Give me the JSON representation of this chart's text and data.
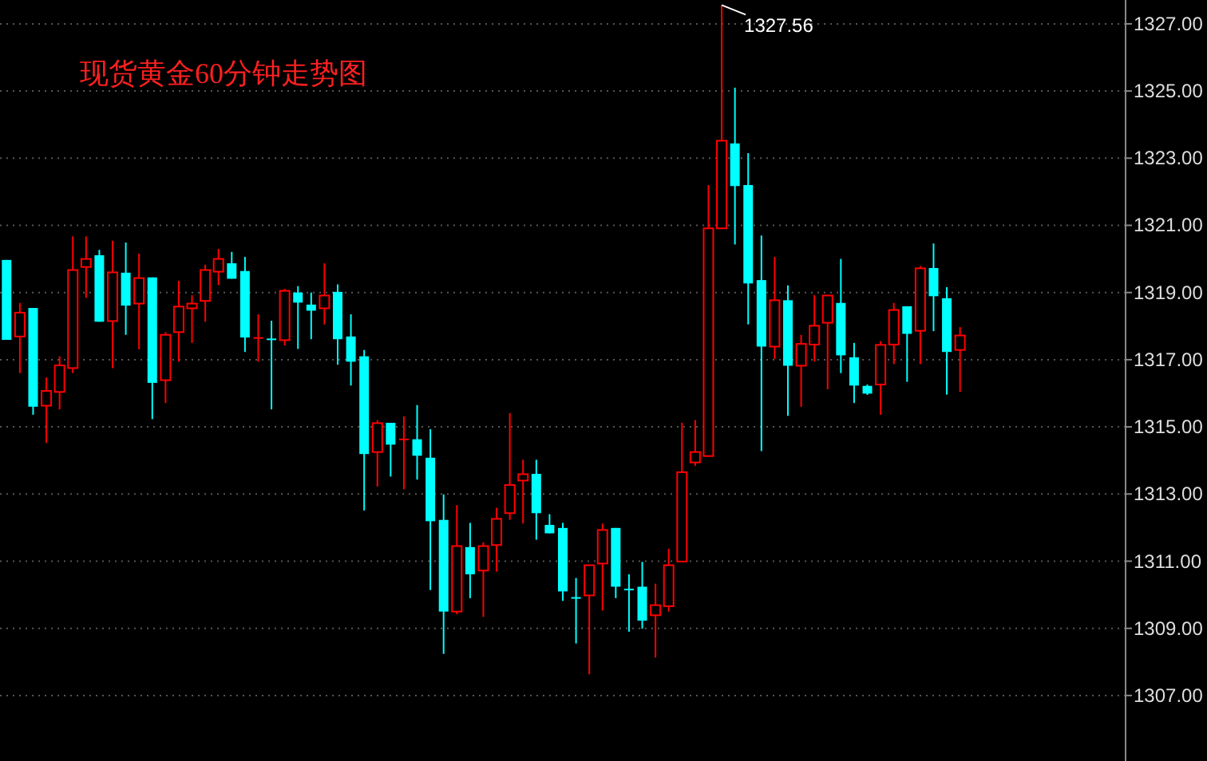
{
  "chart_data": {
    "type": "candlestick",
    "title": "现货黄金60分钟走势图",
    "categories": [
      null,
      null,
      null,
      null,
      null,
      null,
      null,
      null,
      null,
      null,
      null,
      null,
      null,
      null,
      null,
      null,
      null,
      null,
      null,
      null,
      null,
      null,
      null,
      null,
      null,
      null,
      null,
      null,
      null,
      null,
      null,
      null,
      null,
      null,
      null,
      null,
      null,
      null,
      null,
      null,
      null,
      null,
      null,
      null,
      null,
      null,
      null,
      null,
      null,
      null,
      null,
      null,
      null,
      null,
      null,
      null,
      null,
      null,
      null,
      null,
      null,
      null,
      null,
      null,
      null,
      null,
      null,
      null,
      null,
      null,
      null,
      null,
      null,
      null,
      null,
      null,
      null,
      null,
      null,
      null,
      null,
      null,
      null,
      null,
      null
    ],
    "ohlc": [
      [
        1319.97,
        1319.97,
        1317.59,
        1317.59
      ],
      [
        1317.69,
        1318.69,
        1316.6,
        1318.4
      ],
      [
        1318.54,
        1318.54,
        1315.36,
        1315.6
      ],
      [
        1315.63,
        1316.47,
        1314.52,
        1316.07
      ],
      [
        1316.04,
        1317.1,
        1315.52,
        1316.83
      ],
      [
        1316.75,
        1320.67,
        1316.6,
        1319.67
      ],
      [
        1319.76,
        1320.67,
        1318.84,
        1320.0
      ],
      [
        1320.11,
        1320.27,
        1318.13,
        1318.13
      ],
      [
        1318.15,
        1320.54,
        1316.75,
        1319.6
      ],
      [
        1319.59,
        1320.49,
        1317.74,
        1318.61
      ],
      [
        1318.67,
        1320.16,
        1317.31,
        1319.43
      ],
      [
        1319.45,
        1319.45,
        1315.23,
        1316.31
      ],
      [
        1316.39,
        1317.82,
        1315.71,
        1317.74
      ],
      [
        1317.82,
        1319.35,
        1316.94,
        1318.58
      ],
      [
        1318.53,
        1318.92,
        1317.5,
        1318.67
      ],
      [
        1318.75,
        1319.83,
        1318.13,
        1319.67
      ],
      [
        1319.62,
        1320.3,
        1319.22,
        1320.0
      ],
      [
        1319.87,
        1320.21,
        1319.41,
        1319.41
      ],
      [
        1319.64,
        1320.06,
        1317.23,
        1317.66
      ],
      [
        1317.67,
        1318.35,
        1316.94,
        1317.67
      ],
      [
        1317.63,
        1318.16,
        1315.52,
        1317.63
      ],
      [
        1317.58,
        1319.11,
        1317.42,
        1319.05
      ],
      [
        1319.0,
        1319.19,
        1317.32,
        1318.7
      ],
      [
        1318.64,
        1319.0,
        1317.61,
        1318.46
      ],
      [
        1318.53,
        1319.87,
        1318.05,
        1318.91
      ],
      [
        1319.02,
        1319.24,
        1316.85,
        1317.61
      ],
      [
        1317.69,
        1318.35,
        1316.23,
        1316.94
      ],
      [
        1317.1,
        1317.29,
        1312.51,
        1314.19
      ],
      [
        1314.25,
        1315.2,
        1313.22,
        1315.11
      ],
      [
        1315.12,
        1315.12,
        1313.52,
        1314.47
      ],
      [
        1314.65,
        1315.31,
        1313.14,
        1314.65
      ],
      [
        1314.63,
        1315.65,
        1313.43,
        1314.14
      ],
      [
        1314.08,
        1314.93,
        1310.14,
        1312.19
      ],
      [
        1312.23,
        1312.99,
        1308.24,
        1309.5
      ],
      [
        1309.5,
        1312.67,
        1309.42,
        1311.45
      ],
      [
        1311.42,
        1312.14,
        1309.9,
        1310.61
      ],
      [
        1310.72,
        1311.56,
        1309.34,
        1311.45
      ],
      [
        1311.48,
        1312.59,
        1310.69,
        1312.26
      ],
      [
        1312.43,
        1315.41,
        1312.23,
        1313.27
      ],
      [
        1313.4,
        1314.02,
        1312.12,
        1313.59
      ],
      [
        1313.6,
        1314.02,
        1311.64,
        1312.43
      ],
      [
        1312.08,
        1312.4,
        1311.83,
        1311.83
      ],
      [
        1311.99,
        1312.14,
        1309.82,
        1310.1
      ],
      [
        1309.93,
        1310.5,
        1308.55,
        1309.93
      ],
      [
        1309.98,
        1310.88,
        1307.63,
        1310.88
      ],
      [
        1310.93,
        1312.12,
        1309.53,
        1311.93
      ],
      [
        1311.99,
        1311.99,
        1309.9,
        1310.24
      ],
      [
        1310.18,
        1310.61,
        1308.9,
        1310.18
      ],
      [
        1310.24,
        1310.98,
        1308.99,
        1309.23
      ],
      [
        1309.39,
        1310.33,
        1308.13,
        1309.69
      ],
      [
        1309.66,
        1311.37,
        1309.5,
        1310.88
      ],
      [
        1310.99,
        1315.12,
        1310.99,
        1313.65
      ],
      [
        1313.94,
        1315.2,
        1313.84,
        1314.25
      ],
      [
        1314.13,
        1322.2,
        1314.13,
        1320.91
      ],
      [
        1320.91,
        1327.56,
        1320.91,
        1323.52
      ],
      [
        1323.44,
        1325.1,
        1320.43,
        1322.17
      ],
      [
        1322.2,
        1323.15,
        1318.05,
        1319.27
      ],
      [
        1319.37,
        1320.7,
        1314.28,
        1317.39
      ],
      [
        1317.39,
        1320.06,
        1317.02,
        1318.77
      ],
      [
        1318.77,
        1319.21,
        1315.33,
        1316.82
      ],
      [
        1316.82,
        1317.74,
        1315.6,
        1317.47
      ],
      [
        1317.45,
        1318.92,
        1316.94,
        1318.01
      ],
      [
        1318.1,
        1318.91,
        1316.12,
        1318.91
      ],
      [
        1318.69,
        1320.0,
        1316.6,
        1317.13
      ],
      [
        1317.07,
        1317.5,
        1315.71,
        1316.23
      ],
      [
        1316.22,
        1316.26,
        1315.95,
        1315.99
      ],
      [
        1316.26,
        1317.55,
        1315.36,
        1317.44
      ],
      [
        1317.45,
        1318.69,
        1316.87,
        1318.48
      ],
      [
        1318.59,
        1318.59,
        1316.34,
        1317.77
      ],
      [
        1317.86,
        1319.79,
        1316.87,
        1319.72
      ],
      [
        1319.73,
        1320.46,
        1317.85,
        1318.89
      ],
      [
        1318.83,
        1319.16,
        1315.96,
        1317.23
      ],
      [
        1317.29,
        1317.97,
        1316.04,
        1317.72
      ],
      null,
      null,
      null,
      null,
      null,
      null,
      null,
      null,
      null,
      null,
      null,
      null
    ],
    "colors": [
      "#00ffff",
      "#ff0000",
      "#00ffff",
      "#ff0000",
      "#ff0000",
      "#ff0000",
      "#ff0000",
      "#00ffff",
      "#ff0000",
      "#00ffff",
      "#ff0000",
      "#00ffff",
      "#ff0000",
      "#ff0000",
      "#ff0000",
      "#ff0000",
      "#ff0000",
      "#00ffff",
      "#00ffff",
      "#ff0000",
      "#00ffff",
      "#ff0000",
      "#00ffff",
      "#00ffff",
      "#ff0000",
      "#00ffff",
      "#00ffff",
      "#00ffff",
      "#ff0000",
      "#00ffff",
      "#ff0000",
      "#00ffff",
      "#00ffff",
      "#00ffff",
      "#ff0000",
      "#00ffff",
      "#ff0000",
      "#ff0000",
      "#ff0000",
      "#ff0000",
      "#00ffff",
      "#00ffff",
      "#00ffff",
      "#00ffff",
      "#ff0000",
      "#ff0000",
      "#00ffff",
      "#00ffff",
      "#00ffff",
      "#ff0000",
      "#ff0000",
      "#ff0000",
      "#ff0000",
      "#ff0000",
      "#ff0000",
      "#00ffff",
      "#00ffff",
      "#00ffff",
      "#ff0000",
      "#00ffff",
      "#ff0000",
      "#ff0000",
      "#ff0000",
      "#00ffff",
      "#00ffff",
      "#00ffff",
      "#ff0000",
      "#ff0000",
      "#00ffff",
      "#ff0000",
      "#00ffff",
      "#00ffff",
      "#ff0000",
      null,
      null,
      null,
      null,
      null,
      null,
      null,
      null,
      null,
      null,
      null,
      null
    ],
    "ylim": [
      1305.05,
      1327.71
    ],
    "yticks": [
      {
        "value": 1307,
        "label": "1307.00"
      },
      {
        "value": 1309,
        "label": "1309.00"
      },
      {
        "value": 1311,
        "label": "1311.00"
      },
      {
        "value": 1313,
        "label": "1313.00"
      },
      {
        "value": 1315,
        "label": "1315.00"
      },
      {
        "value": 1317,
        "label": "1317.00"
      },
      {
        "value": 1319,
        "label": "1319.00"
      },
      {
        "value": 1321,
        "label": "1321.00"
      },
      {
        "value": 1323,
        "label": "1323.00"
      },
      {
        "value": 1325,
        "label": "1325.00"
      },
      {
        "value": 1327,
        "label": "1327.00"
      }
    ],
    "grid": "y",
    "tick_labels": "y",
    "annotations": [
      "1327.56"
    ]
  }
}
